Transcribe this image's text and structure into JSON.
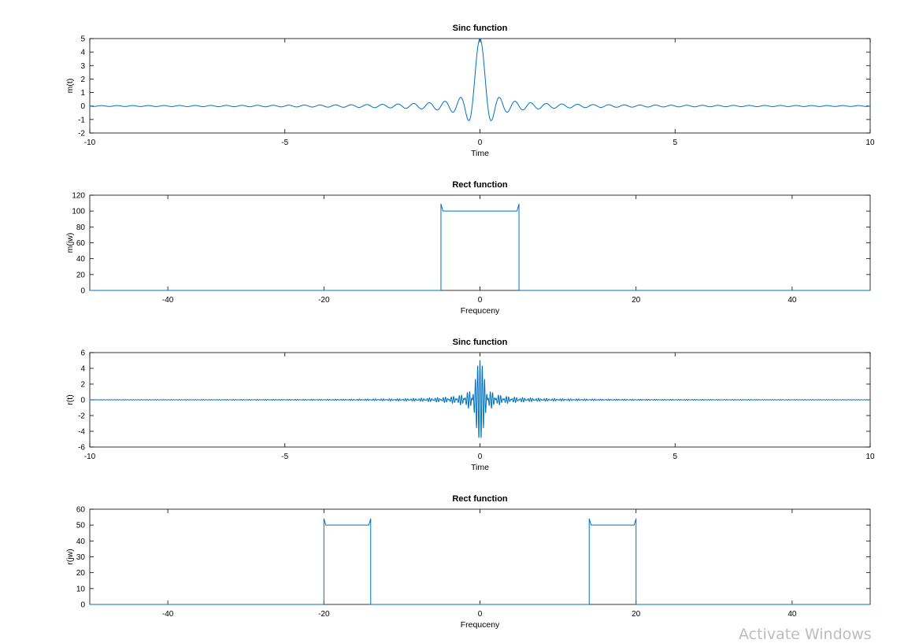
{
  "watermark": "Activate Windows",
  "colors": {
    "line": "#0072bd",
    "axis": "#000000",
    "background": "#ffffff"
  },
  "chart_data": [
    {
      "type": "line",
      "title": "Sinc function",
      "xlabel": "Time",
      "ylabel": "m(t)",
      "xlim": [
        -10,
        10
      ],
      "ylim": [
        -2,
        5
      ],
      "xticks": [
        -10,
        -5,
        0,
        5,
        10
      ],
      "yticks": [
        -2,
        -1,
        0,
        1,
        2,
        3,
        4,
        5
      ],
      "grid": false,
      "series": [
        {
          "function": "sinc",
          "peak": 5,
          "main_lobe_halfwidth": 0.2,
          "x_range": [
            -10,
            10
          ]
        }
      ]
    },
    {
      "type": "line",
      "title": "Rect function",
      "xlabel": "Frequceny",
      "ylabel": "m(jw)",
      "xlim": [
        -50,
        50
      ],
      "ylim": [
        0,
        120
      ],
      "xticks": [
        -40,
        -20,
        0,
        20,
        40
      ],
      "yticks": [
        0,
        20,
        40,
        60,
        80,
        100,
        120
      ],
      "grid": false,
      "series": [
        {
          "function": "rect",
          "pulses": [
            [
              -5,
              5
            ]
          ],
          "height": 100,
          "overshoot": 109
        }
      ]
    },
    {
      "type": "line",
      "title": "Sinc function",
      "xlabel": "Time",
      "ylabel": "r(t)",
      "xlim": [
        -10,
        10
      ],
      "ylim": [
        -6,
        6
      ],
      "xticks": [
        -10,
        -5,
        0,
        5,
        10
      ],
      "yticks": [
        -6,
        -4,
        -2,
        0,
        2,
        4,
        6
      ],
      "grid": false,
      "series": [
        {
          "function": "modulated_sinc",
          "peak": 5,
          "main_lobe_halfwidth": 0.2,
          "carrier_frequency": 17,
          "x_range": [
            -10,
            10
          ]
        }
      ]
    },
    {
      "type": "line",
      "title": "Rect function",
      "xlabel": "Frequceny",
      "ylabel": "r(jw)",
      "xlim": [
        -50,
        50
      ],
      "ylim": [
        0,
        60
      ],
      "xticks": [
        -40,
        -20,
        0,
        20,
        40
      ],
      "yticks": [
        0,
        10,
        20,
        30,
        40,
        50,
        60
      ],
      "grid": false,
      "series": [
        {
          "function": "rect",
          "pulses": [
            [
              -20,
              -14
            ],
            [
              14,
              20
            ]
          ],
          "height": 50,
          "overshoot": 54
        }
      ]
    }
  ]
}
